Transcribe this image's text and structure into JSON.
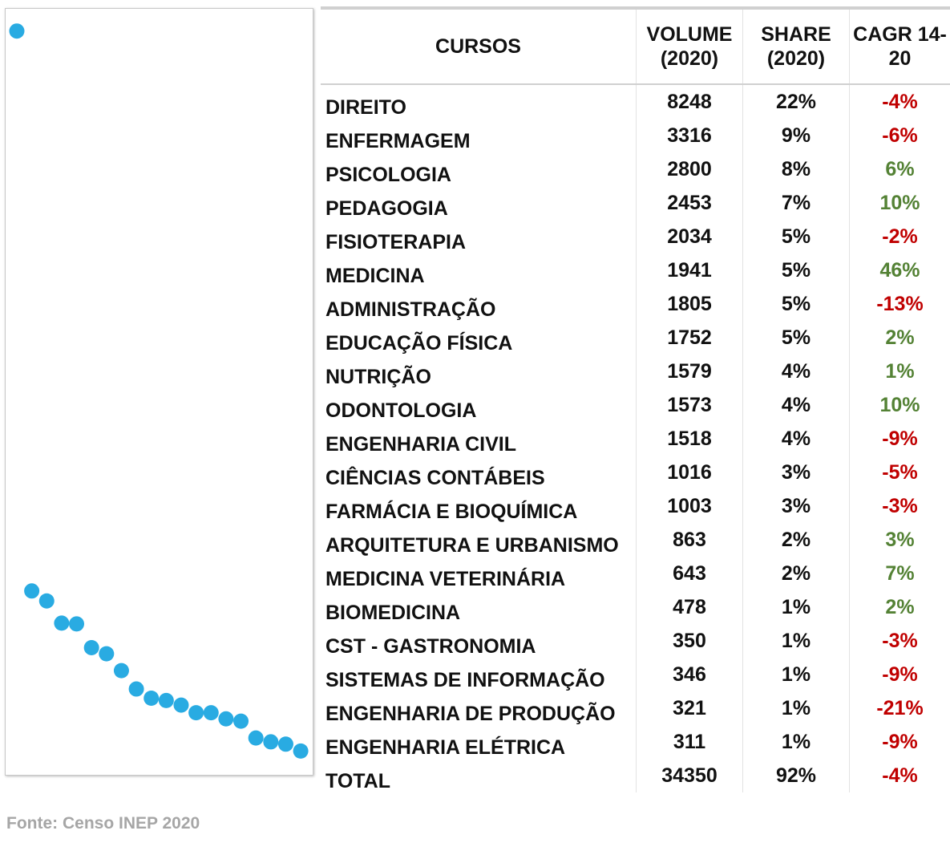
{
  "chart_data": {
    "type": "scatter",
    "color": "#29abe2",
    "x": [
      1,
      2,
      3,
      4,
      5,
      6,
      7,
      8,
      9,
      10,
      11,
      12,
      13,
      14,
      15,
      16,
      17,
      18,
      19,
      20
    ],
    "values": [
      97.1,
      24.0,
      22.7,
      19.8,
      19.7,
      16.6,
      15.8,
      13.6,
      11.2,
      10.0,
      9.7,
      9.1,
      8.1,
      8.1,
      7.3,
      7.0,
      4.8,
      4.3,
      4.0,
      3.1
    ],
    "xlim": [
      0.25,
      20.8
    ],
    "ylim": [
      0,
      100
    ]
  },
  "source": "Fonte: Censo INEP 2020",
  "table": {
    "header": [
      "CURSOS",
      "VOLUME (2020)",
      "SHARE (2020)",
      "CAGR 14-20"
    ],
    "rows": [
      [
        "DIREITO",
        "8248",
        "22%",
        "-4%"
      ],
      [
        "ENFERMAGEM",
        "3316",
        "9%",
        "-6%"
      ],
      [
        "PSICOLOGIA",
        "2800",
        "8%",
        "6%"
      ],
      [
        "PEDAGOGIA",
        "2453",
        "7%",
        "10%"
      ],
      [
        "FISIOTERAPIA",
        "2034",
        "5%",
        "-2%"
      ],
      [
        "MEDICINA",
        "1941",
        "5%",
        "46%"
      ],
      [
        "ADMINISTRAÇÃO",
        "1805",
        "5%",
        "-13%"
      ],
      [
        "EDUCAÇÃO FÍSICA",
        "1752",
        "5%",
        "2%"
      ],
      [
        "NUTRIÇÃO",
        "1579",
        "4%",
        "1%"
      ],
      [
        "ODONTOLOGIA",
        "1573",
        "4%",
        "10%"
      ],
      [
        "ENGENHARIA CIVIL",
        "1518",
        "4%",
        "-9%"
      ],
      [
        "CIÊNCIAS CONTÁBEIS",
        "1016",
        "3%",
        "-5%"
      ],
      [
        "FARMÁCIA E BIOQUÍMICA",
        "1003",
        "3%",
        "-3%"
      ],
      [
        "ARQUITETURA E URBANISMO",
        "863",
        "2%",
        "3%"
      ],
      [
        "MEDICINA VETERINÁRIA",
        "643",
        "2%",
        "7%"
      ],
      [
        "BIOMEDICINA",
        "478",
        "1%",
        "2%"
      ],
      [
        "CST - GASTRONOMIA",
        "350",
        "1%",
        "-3%"
      ],
      [
        "SISTEMAS DE INFORMAÇÃO",
        "346",
        "1%",
        "-9%"
      ],
      [
        "ENGENHARIA DE PRODUÇÃO",
        "321",
        "1%",
        "-21%"
      ],
      [
        "ENGENHARIA ELÉTRICA",
        "311",
        "1%",
        "-9%"
      ],
      [
        "TOTAL",
        "34350",
        "92%",
        "-4%"
      ]
    ]
  }
}
